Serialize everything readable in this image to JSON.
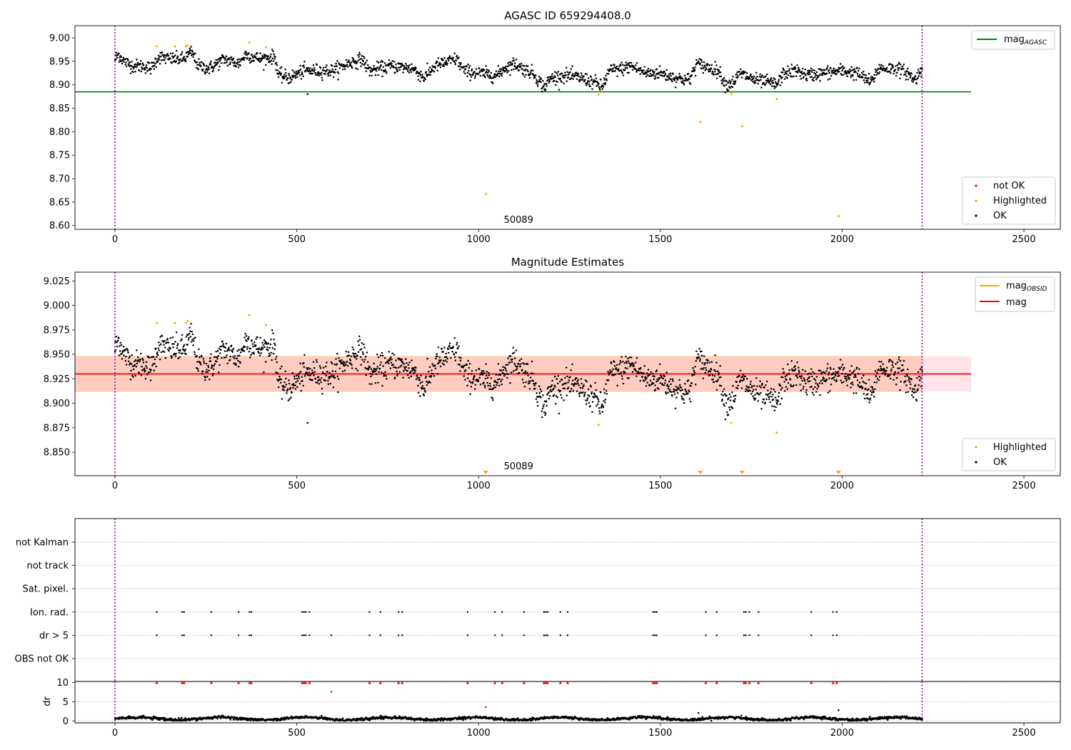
{
  "chart_data": [
    {
      "type": "scatter",
      "title": "AGASC ID 659294408.0",
      "xlabel": "",
      "ylabel": "",
      "xlim": [
        -110,
        2600
      ],
      "ylim": [
        8.592,
        9.026
      ],
      "xticks": [
        0,
        500,
        1000,
        1500,
        2000,
        2500
      ],
      "yticks": [
        8.6,
        8.65,
        8.7,
        8.75,
        8.8,
        8.85,
        8.9,
        8.95,
        9.0
      ],
      "grid": false,
      "vlines": [
        0,
        2220
      ],
      "annotation": {
        "text": "50089",
        "x": 1110,
        "y": 8.6
      },
      "reference_line": {
        "name": "magAGASC",
        "y": 8.885,
        "color": "#008000"
      },
      "legend_lines": {
        "placement": "top-right",
        "entries": [
          {
            "name": "mag",
            "sub": "AGASC",
            "color": "#008000"
          }
        ]
      },
      "legend_points": {
        "placement": "bottom-right",
        "entries": [
          {
            "name": "not OK",
            "color": "#ff0000"
          },
          {
            "name": "Highlighted",
            "color": "#ffa500"
          },
          {
            "name": "OK",
            "color": "#000000"
          }
        ]
      },
      "ok_trend": {
        "x": [
          0,
          10,
          25,
          50,
          80,
          100,
          120,
          150,
          190,
          210,
          230,
          260,
          300,
          340,
          360,
          400,
          440,
          450,
          480,
          520,
          560,
          600,
          640,
          680,
          700,
          760,
          820,
          850,
          880,
          920,
          940,
          960,
          1000,
          1050,
          1070,
          1100,
          1120,
          1150,
          1180,
          1200,
          1240,
          1280,
          1320,
          1340,
          1360,
          1400,
          1420,
          1460,
          1500,
          1540,
          1580,
          1600,
          1620,
          1660,
          1680,
          1700,
          1720,
          1760,
          1800,
          1820,
          1840,
          1880,
          1900,
          1950,
          2000,
          2040,
          2080,
          2100,
          2150,
          2180,
          2200,
          2220
        ],
        "y": [
          8.955,
          8.965,
          8.95,
          8.94,
          8.94,
          8.935,
          8.96,
          8.955,
          8.955,
          8.97,
          8.94,
          8.935,
          8.955,
          8.945,
          8.965,
          8.955,
          8.96,
          8.92,
          8.915,
          8.93,
          8.93,
          8.93,
          8.945,
          8.955,
          8.93,
          8.94,
          8.935,
          8.915,
          8.94,
          8.95,
          8.955,
          8.93,
          8.925,
          8.92,
          8.935,
          8.945,
          8.935,
          8.925,
          8.895,
          8.915,
          8.92,
          8.915,
          8.905,
          8.895,
          8.93,
          8.935,
          8.94,
          8.925,
          8.925,
          8.915,
          8.91,
          8.945,
          8.94,
          8.93,
          8.9,
          8.905,
          8.925,
          8.91,
          8.905,
          8.9,
          8.925,
          8.93,
          8.92,
          8.925,
          8.93,
          8.925,
          8.905,
          8.935,
          8.935,
          8.925,
          8.91,
          8.935
        ],
        "count": 1900
      },
      "not_ok_points": [],
      "highlighted_points": {
        "x": [
          115,
          165,
          195,
          200,
          370,
          415,
          1020,
          1330,
          1610,
          1695,
          1725,
          1820,
          1990
        ],
        "y": [
          8.982,
          8.982,
          8.982,
          8.984,
          8.99,
          8.98,
          8.667,
          8.879,
          8.821,
          8.88,
          8.812,
          8.87,
          8.62
        ]
      },
      "outlier_ok_points": {
        "x": [
          530
        ],
        "y": [
          8.88
        ]
      }
    },
    {
      "type": "scatter",
      "title": "Magnitude Estimates",
      "xlabel": "",
      "ylabel": "",
      "xlim": [
        -110,
        2600
      ],
      "ylim": [
        8.826,
        9.034
      ],
      "xticks": [
        0,
        500,
        1000,
        1500,
        2000,
        2500
      ],
      "yticks": [
        8.85,
        8.875,
        8.9,
        8.925,
        8.95,
        8.975,
        9.0,
        9.025
      ],
      "grid": false,
      "vlines": [
        0,
        2220
      ],
      "annotation": {
        "text": "50089",
        "x": 1110,
        "y": 8.834
      },
      "band": {
        "y_low": 8.912,
        "y_high": 8.948,
        "x_range": [
          -110,
          2330
        ]
      },
      "mag_line": {
        "name": "mag",
        "y": 8.93,
        "color": "#ff0000"
      },
      "mag_obsid_line": {
        "name": "magOBSID",
        "color": "#ffa500"
      },
      "legend_lines": {
        "placement": "top-right",
        "entries": [
          {
            "name": "mag",
            "sub": "OBSID",
            "color": "#ffa500"
          },
          {
            "name": "mag",
            "sub": "",
            "color": "#ff0000"
          }
        ]
      },
      "legend_points": {
        "placement": "bottom-right",
        "entries": [
          {
            "name": "Highlighted",
            "color": "#ffa500"
          },
          {
            "name": "OK",
            "color": "#000000"
          }
        ]
      },
      "ok_trend": {
        "x": [
          0,
          10,
          25,
          50,
          80,
          100,
          120,
          150,
          190,
          210,
          230,
          260,
          300,
          340,
          360,
          400,
          440,
          450,
          480,
          520,
          560,
          600,
          640,
          680,
          700,
          760,
          820,
          850,
          880,
          920,
          940,
          960,
          1000,
          1050,
          1070,
          1100,
          1120,
          1150,
          1180,
          1200,
          1240,
          1280,
          1320,
          1340,
          1360,
          1400,
          1420,
          1460,
          1500,
          1540,
          1580,
          1600,
          1620,
          1660,
          1680,
          1700,
          1720,
          1760,
          1800,
          1820,
          1840,
          1880,
          1900,
          1950,
          2000,
          2040,
          2080,
          2100,
          2150,
          2180,
          2200,
          2220
        ],
        "y": [
          8.955,
          8.965,
          8.95,
          8.94,
          8.94,
          8.935,
          8.96,
          8.955,
          8.955,
          8.97,
          8.94,
          8.935,
          8.955,
          8.945,
          8.965,
          8.955,
          8.96,
          8.92,
          8.915,
          8.93,
          8.93,
          8.93,
          8.945,
          8.955,
          8.93,
          8.94,
          8.935,
          8.915,
          8.94,
          8.95,
          8.955,
          8.93,
          8.925,
          8.92,
          8.935,
          8.945,
          8.935,
          8.925,
          8.895,
          8.915,
          8.92,
          8.915,
          8.905,
          8.895,
          8.93,
          8.935,
          8.94,
          8.925,
          8.925,
          8.915,
          8.91,
          8.945,
          8.94,
          8.93,
          8.9,
          8.905,
          8.925,
          8.91,
          8.905,
          8.9,
          8.925,
          8.93,
          8.92,
          8.925,
          8.93,
          8.925,
          8.905,
          8.935,
          8.935,
          8.925,
          8.91,
          8.935
        ],
        "count": 1900
      },
      "highlighted_points": {
        "x": [
          115,
          165,
          195,
          200,
          370,
          415,
          1330,
          1695,
          1820
        ],
        "y": [
          8.982,
          8.982,
          8.982,
          8.984,
          8.99,
          8.98,
          8.878,
          8.88,
          8.87
        ]
      },
      "offscale_markers": {
        "x": [
          1020,
          1610,
          1725,
          1990
        ],
        "color": "#ffa500"
      },
      "outlier_ok_points": {
        "x": [
          530
        ],
        "y": [
          8.88
        ]
      }
    },
    {
      "type": "scatter",
      "title": "",
      "xlabel": "",
      "ylabel": "",
      "xlim": [
        -110,
        2600
      ],
      "categories": [
        "not Kalman",
        "not track",
        "Sat. pixel.",
        "Ion. rad.",
        "dr > 5",
        "OBS not OK"
      ],
      "grid": true,
      "vlines": [
        0,
        2220
      ],
      "flag_points": {
        "Ion. rad.": [
          115,
          185,
          190,
          265,
          340,
          370,
          375,
          515,
          520,
          525,
          535,
          700,
          730,
          780,
          790,
          970,
          1045,
          1065,
          1125,
          1180,
          1185,
          1190,
          1225,
          1245,
          1480,
          1485,
          1490,
          1625,
          1655,
          1730,
          1735,
          1745,
          1770,
          1915,
          1975,
          1985
        ],
        "dr > 5": [
          115,
          185,
          190,
          265,
          340,
          370,
          375,
          515,
          520,
          525,
          535,
          595,
          700,
          730,
          780,
          790,
          970,
          1045,
          1065,
          1125,
          1180,
          1185,
          1190,
          1225,
          1245,
          1480,
          1485,
          1490,
          1625,
          1655,
          1730,
          1735,
          1745,
          1770,
          1915,
          1975,
          1985
        ]
      }
    },
    {
      "type": "scatter",
      "title": "",
      "xlabel": "",
      "ylabel": "dr",
      "xlim": [
        -110,
        2600
      ],
      "ylim": [
        -0.5,
        10.3
      ],
      "xticks": [
        0,
        500,
        1000,
        1500,
        2000,
        2500
      ],
      "yticks": [
        0,
        5,
        10
      ],
      "grid": true,
      "vlines": [
        0,
        2220
      ],
      "baseline": {
        "x_range": [
          0,
          2220
        ],
        "y_mean": 0.6,
        "count": 1900
      },
      "capped_points": {
        "x": [
          115,
          185,
          190,
          265,
          340,
          370,
          375,
          515,
          520,
          525,
          535,
          700,
          730,
          780,
          790,
          970,
          1045,
          1065,
          1125,
          1180,
          1185,
          1190,
          1225,
          1245,
          1480,
          1485,
          1490,
          1625,
          1655,
          1730,
          1735,
          1745,
          1770,
          1915,
          1975,
          1985
        ],
        "y": 10,
        "color": "#ff0000"
      },
      "extra_points": {
        "x": [
          595,
          1020,
          1605,
          1990
        ],
        "y": [
          7.6,
          3.6,
          2.1,
          2.8
        ],
        "colors": [
          "#ff0000",
          "#ff0000",
          "#000000",
          "#000000"
        ]
      }
    }
  ]
}
